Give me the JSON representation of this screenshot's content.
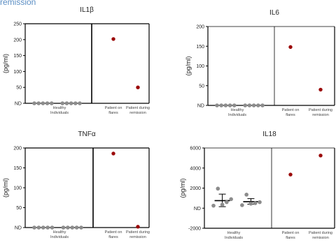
{
  "top_text": "remission",
  "chart_data": [
    {
      "type": "scatter",
      "title": "IL1β",
      "ylabel": "(pg/ml)",
      "ylim": [
        0,
        250
      ],
      "yticks": [
        "ND",
        "50",
        "100",
        "150",
        "200",
        "250"
      ],
      "categories": [
        "Healthy\nIndividuals",
        "Patient on\nflares",
        "Patient during\nremission"
      ],
      "series": [
        {
          "color": "#8c8c8c",
          "x": [
            0.62,
            0.66,
            0.7,
            0.74,
            0.78,
            0.88,
            0.92,
            0.96,
            1.0,
            1.04
          ],
          "y": [
            0,
            0,
            0,
            0,
            0,
            0,
            0,
            0,
            0,
            0
          ]
        },
        {
          "color": "#9b0a0a",
          "x": [
            2,
            3
          ],
          "y": [
            202,
            50
          ]
        }
      ],
      "summary_bars": []
    },
    {
      "type": "scatter",
      "title": "IL6",
      "ylabel": "(pg/ml)",
      "ylim": [
        0,
        200
      ],
      "yticks": [
        "ND",
        "50",
        "100",
        "150",
        "200"
      ],
      "categories": [
        "Healthy\nIndividuals",
        "Patient on\nflares",
        "Patient during\nremission"
      ],
      "series": [
        {
          "color": "#8c8c8c",
          "x": [
            0.62,
            0.66,
            0.7,
            0.74,
            0.78,
            0.88,
            0.92,
            0.96,
            1.0,
            1.04
          ],
          "y": [
            0,
            0,
            0,
            0,
            0,
            0,
            0,
            0,
            0,
            0
          ]
        },
        {
          "color": "#9b0a0a",
          "x": [
            2,
            3
          ],
          "y": [
            148,
            40
          ]
        }
      ],
      "summary_bars": []
    },
    {
      "type": "scatter",
      "title": "TNFα",
      "ylabel": "(pg/ml)",
      "ylim": [
        0,
        200
      ],
      "yticks": [
        "ND",
        "50",
        "100",
        "150",
        "200"
      ],
      "categories": [
        "Healthy\nIndividuals",
        "Patient on\nflares",
        "Patient during\nremission"
      ],
      "series": [
        {
          "color": "#8c8c8c",
          "x": [
            0.62,
            0.66,
            0.7,
            0.74,
            0.78,
            0.88,
            0.92,
            0.96,
            1.0,
            1.04
          ],
          "y": [
            0,
            0,
            0,
            0,
            0,
            0,
            0,
            0,
            0,
            0
          ]
        },
        {
          "color": "#9b0a0a",
          "x": [
            2,
            3
          ],
          "y": [
            186,
            2
          ]
        }
      ],
      "summary_bars": []
    },
    {
      "type": "scatter",
      "title": "IL18",
      "ylabel": "(pg/ml)",
      "ylim": [
        -2000,
        6000
      ],
      "yticks": [
        "-2000",
        "ND",
        "2000",
        "4000",
        "6000"
      ],
      "categories": [
        "Healthy\nIndividuals",
        "Patient on\nflares",
        "Patient during\nremission"
      ],
      "series": [
        {
          "color": "#8c8c8c",
          "x": [
            0.62,
            0.66,
            0.7,
            0.74,
            0.78,
            0.88,
            0.92,
            0.96,
            1.0,
            1.04
          ],
          "y": [
            250,
            1950,
            350,
            600,
            900,
            300,
            1350,
            450,
            500,
            600
          ]
        },
        {
          "color": "#9b0a0a",
          "x": [
            2,
            3
          ],
          "y": [
            3350,
            5250
          ]
        }
      ],
      "summary_bars": [
        {
          "x": 0.7,
          "mean": 750,
          "low": 150,
          "high": 1400
        },
        {
          "x": 0.96,
          "mean": 650,
          "low": 400,
          "high": 950
        }
      ]
    }
  ]
}
